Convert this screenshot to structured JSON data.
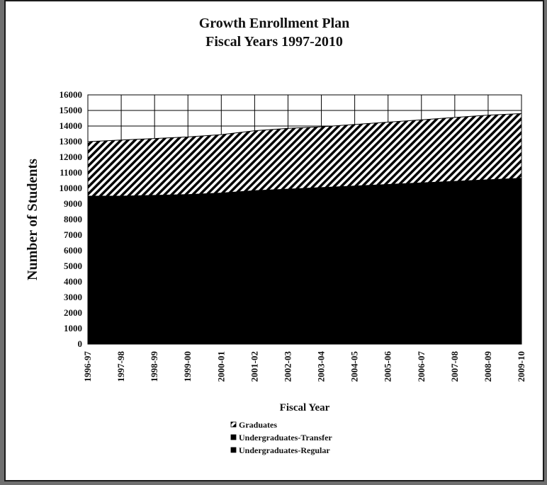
{
  "chart_data": {
    "type": "area",
    "stacked": true,
    "title": "Growth Enrollment Plan",
    "subtitle": "Fiscal Years 1997-2010",
    "xlabel": "Fiscal Year",
    "ylabel": "Number of Students",
    "ylim": [
      0,
      16000
    ],
    "yticks": [
      "0",
      "1000",
      "2000",
      "3000",
      "4000",
      "5000",
      "6000",
      "7000",
      "8000",
      "9000",
      "10000",
      "11000",
      "12000",
      "13000",
      "14000",
      "15000",
      "16000"
    ],
    "categories": [
      "1996-97",
      "1997-98",
      "1998-99",
      "1999-00",
      "2000-01",
      "2001-02",
      "2002-03",
      "2003-04",
      "2004-05",
      "2005-06",
      "2006-07",
      "2007-08",
      "2008-09",
      "2009-10"
    ],
    "series": [
      {
        "name": "Undergraduates-Regular",
        "values": [
          9500,
          9500,
          9550,
          9600,
          9700,
          9850,
          9950,
          10050,
          10150,
          10250,
          10350,
          10450,
          10550,
          10650
        ],
        "color": "#000000",
        "pattern": "solid"
      },
      {
        "name": "Undergraduates-Transfer",
        "values": [
          0,
          0,
          0,
          0,
          0,
          0,
          0,
          0,
          0,
          0,
          0,
          0,
          0,
          0
        ],
        "color": "#000000",
        "pattern": "solid"
      },
      {
        "name": "Graduates",
        "values": [
          3500,
          3600,
          3650,
          3700,
          3750,
          3850,
          3900,
          3900,
          3950,
          4000,
          4050,
          4100,
          4150,
          4150
        ],
        "color": "#000000",
        "pattern": "hatched"
      }
    ],
    "grid": true,
    "legend": "bottom-center"
  }
}
